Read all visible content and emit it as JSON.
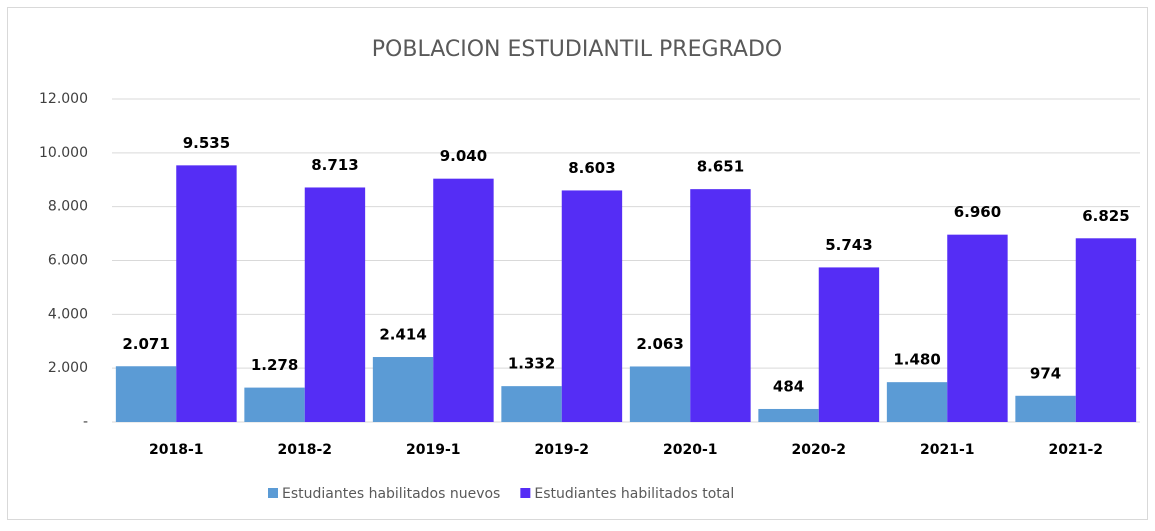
{
  "chart_data": {
    "type": "bar",
    "title": "POBLACION ESTUDIANTIL PREGRADO",
    "categories": [
      "2018-1",
      "2018-2",
      "2019-1",
      "2019-2",
      "2020-1",
      "2020-2",
      "2021-1",
      "2021-2"
    ],
    "series": [
      {
        "name": "Estudiantes habilitados nuevos",
        "color": "#5b9bd5",
        "values": [
          2071,
          1278,
          2414,
          1332,
          2063,
          484,
          1480,
          974
        ],
        "value_labels": [
          "2.071",
          "1.278",
          "2.414",
          "1.332",
          "2.063",
          "484",
          "1.480",
          "974"
        ]
      },
      {
        "name": "Estudiantes habilitados total",
        "color": "#552df5",
        "values": [
          9535,
          8713,
          9040,
          8603,
          8651,
          5743,
          6960,
          6825
        ],
        "value_labels": [
          "9.535",
          "8.713",
          "9.040",
          "8.603",
          "8.651",
          "5.743",
          "6.960",
          "6.825"
        ]
      }
    ],
    "ylim": [
      0,
      12000
    ],
    "yticks": [
      {
        "value": 0,
        "label": "-"
      },
      {
        "value": 2000,
        "label": "2.000"
      },
      {
        "value": 4000,
        "label": "4.000"
      },
      {
        "value": 6000,
        "label": "6.000"
      },
      {
        "value": 8000,
        "label": "8.000"
      },
      {
        "value": 10000,
        "label": "10.000"
      },
      {
        "value": 12000,
        "label": "12.000"
      }
    ],
    "grid": true,
    "legend": "bottom"
  }
}
